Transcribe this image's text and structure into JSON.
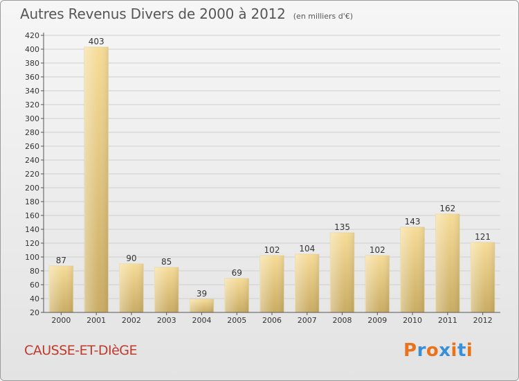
{
  "header": {
    "title": "Autres Revenus Divers de 2000 à 2012",
    "subtitle": "(en milliers d'€)"
  },
  "footer": {
    "place": "CAUSSE-ET-DIèGE"
  },
  "logo": {
    "text": "Proxiti",
    "letter_colors": [
      "#e8731c",
      "#3b8fd6",
      "#e8731c",
      "#3b8fd6",
      "#e8731c",
      "#3b8fd6",
      "#e8731c"
    ]
  },
  "colors": {
    "bar_light": "#f6dc98",
    "bar_dark": "#c9ac64",
    "grid": "#cfcfcf",
    "axis": "#555555",
    "place_text": "#c0392b"
  },
  "chart_data": {
    "type": "bar",
    "title": "Autres Revenus Divers de 2000 à 2012",
    "subtitle": "(en milliers d'€)",
    "categories": [
      "2000",
      "2001",
      "2002",
      "2003",
      "2004",
      "2005",
      "2006",
      "2007",
      "2008",
      "2009",
      "2010",
      "2011",
      "2012"
    ],
    "values": [
      87,
      403,
      90,
      85,
      39,
      69,
      102,
      104,
      135,
      102,
      143,
      162,
      121
    ],
    "ylim": [
      20,
      420
    ],
    "ytick_step": 20,
    "grid": true,
    "legend": "none"
  }
}
